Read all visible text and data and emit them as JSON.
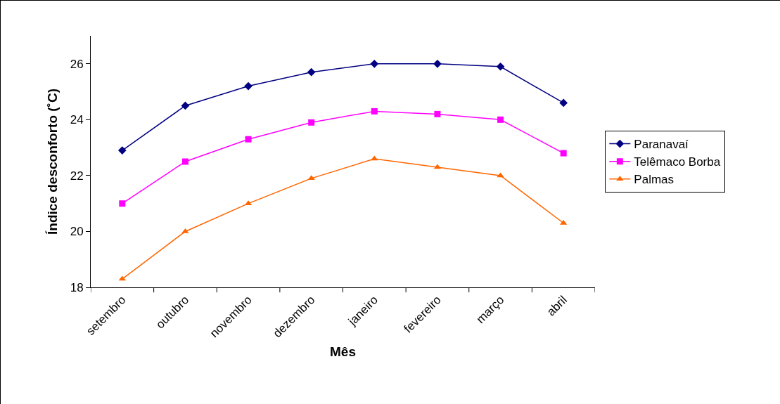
{
  "chart_data": {
    "type": "line",
    "xlabel": "Mês",
    "ylabel": "Índice desconforto (˚C)",
    "categories": [
      "setembro",
      "outubro",
      "novembro",
      "dezembro",
      "janeiro",
      "fevereiro",
      "março",
      "abril"
    ],
    "ylim": [
      18,
      27
    ],
    "yticks": [
      18,
      20,
      22,
      24,
      26
    ],
    "grid": false,
    "legend": "right",
    "line_style": "solid",
    "series": [
      {
        "name": "Paranavaí",
        "color": "#000080",
        "marker": "diamond",
        "values": [
          22.9,
          24.5,
          25.2,
          25.7,
          26.0,
          26.0,
          25.9,
          24.6
        ]
      },
      {
        "name": "Telêmaco Borba",
        "color": "#ff00ff",
        "marker": "square",
        "values": [
          21.0,
          22.5,
          23.3,
          23.9,
          24.3,
          24.2,
          24.0,
          22.8
        ]
      },
      {
        "name": "Palmas",
        "color": "#ff6600",
        "marker": "triangle",
        "values": [
          18.3,
          20.0,
          21.0,
          21.9,
          22.6,
          22.3,
          22.0,
          20.3
        ]
      }
    ]
  }
}
